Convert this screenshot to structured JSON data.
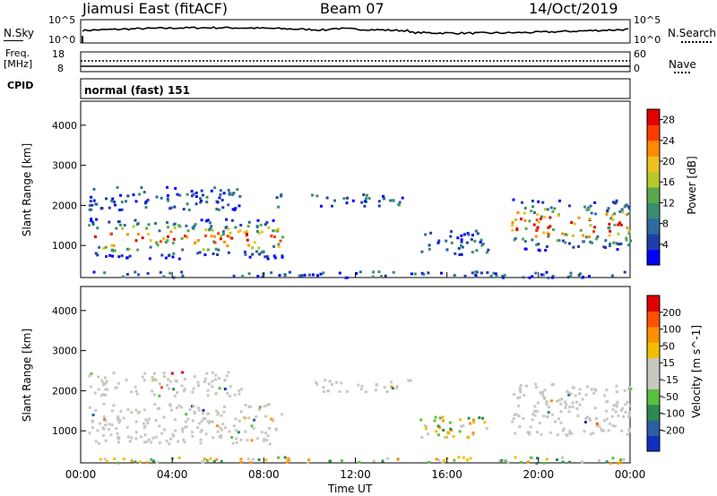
{
  "header": {
    "station": "Jiamusi East (fitACF)",
    "beam": "Beam 07",
    "date": "14/Oct/2019"
  },
  "noise_panel": {
    "left_label": "N.Sky",
    "left_ticks": [
      "10^5",
      "10^0"
    ],
    "right_label": "N.Search",
    "right_ticks": [
      "10^5",
      "10^0"
    ]
  },
  "freq_panel": {
    "left_label_1": "Freq.",
    "left_label_2": "[MHz]",
    "left_ticks": [
      "18",
      "8"
    ],
    "right_label": "Nave",
    "right_ticks": [
      "60",
      "0"
    ]
  },
  "cpid": {
    "label": "CPID",
    "value": "normal (fast) 151"
  },
  "x_axis": {
    "label": "Time UT",
    "ticks": [
      "00:00",
      "04:00",
      "08:00",
      "12:00",
      "16:00",
      "20:00",
      "00:00"
    ]
  },
  "chart_data": [
    {
      "type": "heatmap",
      "name": "power",
      "ylabel": "Slant Range [km]",
      "yticks": [
        "1000",
        "2000",
        "3000",
        "4000"
      ],
      "ylim": [
        200,
        4600
      ],
      "xlim_hours": [
        0,
        24
      ],
      "colorbar": {
        "label": "Power [dB]",
        "ticks": [
          "4",
          "8",
          "12",
          "16",
          "20",
          "24",
          "28"
        ],
        "range": [
          0,
          30
        ],
        "colors": [
          "#0000ff",
          "#1f3fa8",
          "#2e6b9e",
          "#3a8e6e",
          "#5aa84a",
          "#b8c828",
          "#f0c020",
          "#ff8a00",
          "#ff3c00",
          "#e00000"
        ]
      },
      "regions": [
        {
          "t0": 0.3,
          "t1": 8.8,
          "r0": 700,
          "r1": 1700,
          "level": "high"
        },
        {
          "t0": 0.3,
          "t1": 7.0,
          "r0": 1900,
          "r1": 2500,
          "level": "low"
        },
        {
          "t0": 8.5,
          "t1": 9.0,
          "r0": 1900,
          "r1": 2300,
          "level": "low"
        },
        {
          "t0": 10.0,
          "t1": 14.5,
          "r0": 2000,
          "r1": 2300,
          "level": "low"
        },
        {
          "t0": 14.8,
          "t1": 17.8,
          "r0": 800,
          "r1": 1400,
          "level": "low"
        },
        {
          "t0": 18.8,
          "t1": 24.0,
          "r0": 900,
          "r1": 2200,
          "level": "high"
        },
        {
          "t0": 0.0,
          "t1": 24.0,
          "r0": 220,
          "r1": 380,
          "level": "low"
        }
      ]
    },
    {
      "type": "heatmap",
      "name": "velocity",
      "ylabel": "Slant Range [km]",
      "yticks": [
        "1000",
        "2000",
        "3000",
        "4000"
      ],
      "ylim": [
        200,
        4600
      ],
      "xlim_hours": [
        0,
        24
      ],
      "colorbar": {
        "label": "Velocity [m s^-1]",
        "ticks": [
          "200",
          "100",
          "50",
          "15",
          "-15",
          "-50",
          "-100",
          "-200"
        ],
        "colors": [
          "#1030c0",
          "#2a5fa0",
          "#2e8a50",
          "#5ac040",
          "#c8c8c0",
          "#c8c8c0",
          "#f0c000",
          "#ff9000",
          "#ff5000",
          "#e00000"
        ]
      },
      "regions": [
        {
          "t0": 0.3,
          "t1": 8.8,
          "r0": 700,
          "r1": 1700,
          "level": "ground"
        },
        {
          "t0": 0.3,
          "t1": 7.0,
          "r0": 1900,
          "r1": 2500,
          "level": "ground"
        },
        {
          "t0": 10.0,
          "t1": 14.5,
          "r0": 2000,
          "r1": 2300,
          "level": "ground"
        },
        {
          "t0": 14.8,
          "t1": 17.8,
          "r0": 800,
          "r1": 1400,
          "level": "mixed"
        },
        {
          "t0": 18.8,
          "t1": 24.0,
          "r0": 900,
          "r1": 2200,
          "level": "ground"
        },
        {
          "t0": 0.0,
          "t1": 24.0,
          "r0": 220,
          "r1": 380,
          "level": "mixed"
        }
      ]
    }
  ]
}
